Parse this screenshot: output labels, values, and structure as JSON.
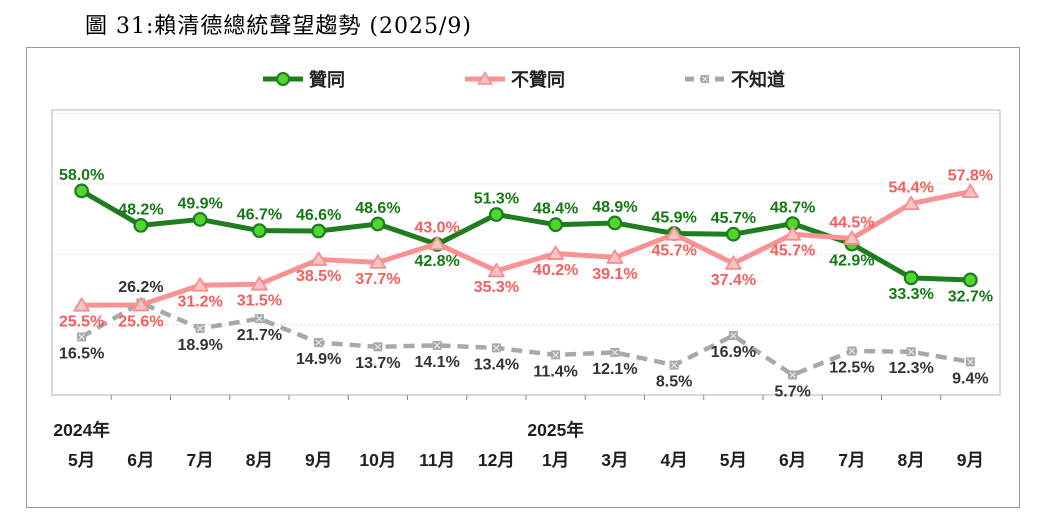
{
  "figure_title": "圖 31:賴清德總統聲望趨勢 (2025/9)",
  "chart_data": {
    "type": "line",
    "title": "圖 31:賴清德總統聲望趨勢 (2025/9)",
    "legend_position": "top",
    "grid": true,
    "grid_values": [
      20,
      40,
      60,
      80
    ],
    "ylim": [
      0,
      81
    ],
    "categories": [
      "5月",
      "6月",
      "7月",
      "8月",
      "9月",
      "10月",
      "11月",
      "12月",
      "1月",
      "3月",
      "4月",
      "5月",
      "6月",
      "7月",
      "8月",
      "9月"
    ],
    "year_groups": [
      {
        "label": "2024年",
        "at_index": 0
      },
      {
        "label": "2025年",
        "at_index": 8
      }
    ],
    "series": [
      {
        "key": "approve",
        "name": "贊同",
        "marker": "circle",
        "dash": false,
        "line_color": "#1e7d1e",
        "marker_fill": "#52d52e",
        "marker_stroke": "#1e7d1e",
        "label_color": "#157815",
        "values": [
          58.0,
          48.2,
          49.9,
          46.7,
          46.6,
          48.6,
          42.8,
          51.3,
          48.4,
          48.9,
          45.9,
          45.7,
          48.7,
          42.9,
          33.3,
          32.7
        ],
        "label_side": [
          "above",
          "above",
          "above",
          "above",
          "above",
          "above",
          "below",
          "above",
          "above",
          "above",
          "above",
          "above",
          "above",
          "below",
          "below",
          "below"
        ]
      },
      {
        "key": "disapprove",
        "name": "不贊同",
        "marker": "triangle",
        "dash": false,
        "line_color": "#f99393",
        "marker_fill": "#fbc2c2",
        "marker_stroke": "#f58e8e",
        "label_color": "#f95c5c",
        "values": [
          25.5,
          25.6,
          31.2,
          31.5,
          38.5,
          37.7,
          43.0,
          35.3,
          40.2,
          39.1,
          45.7,
          37.4,
          45.7,
          44.5,
          54.4,
          57.8
        ],
        "label_side": [
          "below",
          "below",
          "below",
          "below",
          "below",
          "below",
          "above",
          "below",
          "below",
          "below",
          "below",
          "below",
          "below",
          "above",
          "above",
          "above"
        ]
      },
      {
        "key": "unknown",
        "name": "不知道",
        "marker": "square",
        "dash": true,
        "line_color": "#a8a8a8",
        "marker_fill": "#a8a8a8",
        "marker_stroke": "#8f8f8f",
        "label_color": "#333333",
        "values": [
          16.5,
          26.2,
          18.9,
          21.7,
          14.9,
          13.7,
          14.1,
          13.4,
          11.4,
          12.1,
          8.5,
          16.9,
          5.7,
          12.5,
          12.3,
          9.4
        ],
        "label_side": [
          "below",
          "above",
          "below",
          "below",
          "below",
          "below",
          "below",
          "below",
          "below",
          "below",
          "below",
          "below",
          "below",
          "below",
          "below",
          "below"
        ]
      }
    ]
  }
}
